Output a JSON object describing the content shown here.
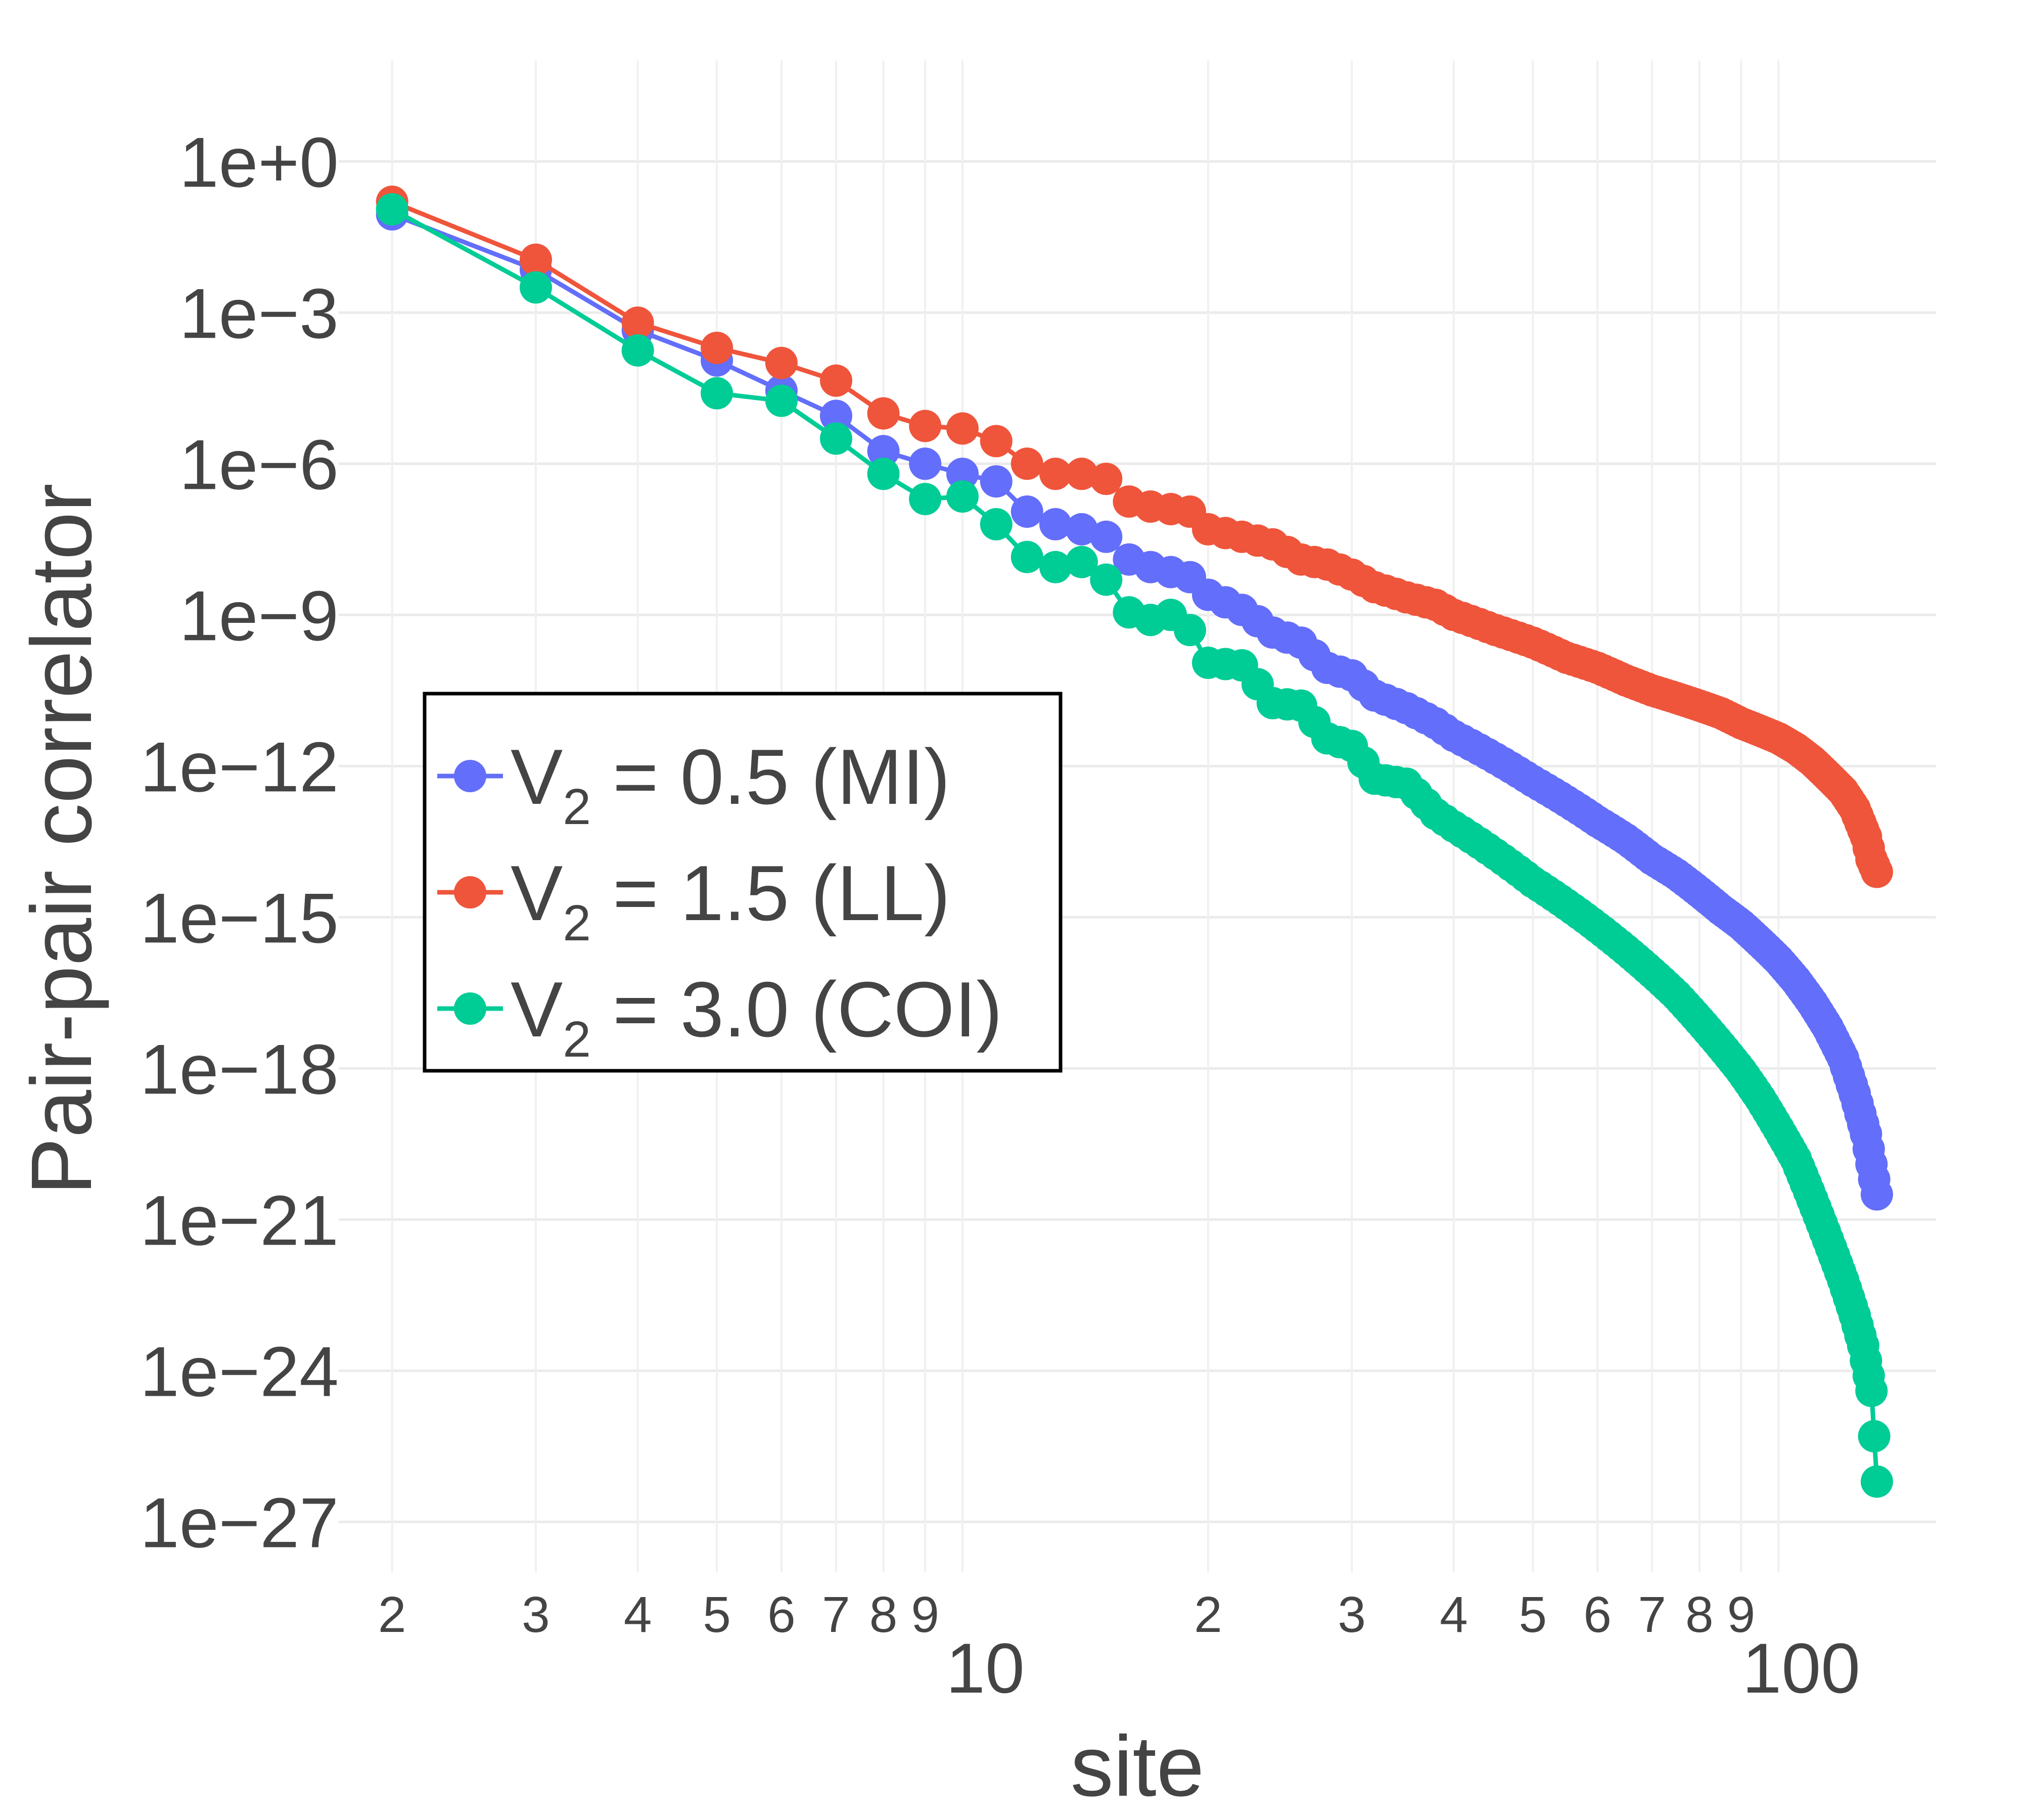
{
  "chart_data": {
    "type": "line",
    "title": "",
    "xlabel": "site",
    "ylabel": "Pair-pair correlator",
    "xscale": "log",
    "yscale": "log",
    "xlim": [
      1.72,
      156
    ],
    "ylim_log10": [
      -28.0,
      2.0
    ],
    "y_ticks": [
      {
        "exp": 0,
        "label": "1e+0"
      },
      {
        "exp": -3,
        "label": "1e−3"
      },
      {
        "exp": -6,
        "label": "1e−6"
      },
      {
        "exp": -9,
        "label": "1e−9"
      },
      {
        "exp": -12,
        "label": "1e−12"
      },
      {
        "exp": -15,
        "label": "1e−15"
      },
      {
        "exp": -18,
        "label": "1e−18"
      },
      {
        "exp": -21,
        "label": "1e−21"
      },
      {
        "exp": -24,
        "label": "1e−24"
      },
      {
        "exp": -27,
        "label": "1e−27"
      }
    ],
    "x_minor_ticks": [
      {
        "value": 2,
        "label": "2"
      },
      {
        "value": 3,
        "label": "3"
      },
      {
        "value": 4,
        "label": "4"
      },
      {
        "value": 5,
        "label": "5"
      },
      {
        "value": 6,
        "label": "6"
      },
      {
        "value": 7,
        "label": "7"
      },
      {
        "value": 8,
        "label": "8"
      },
      {
        "value": 9,
        "label": "9"
      },
      {
        "value": 20,
        "label": "2"
      },
      {
        "value": 30,
        "label": "3"
      },
      {
        "value": 40,
        "label": "4"
      },
      {
        "value": 50,
        "label": "5"
      },
      {
        "value": 60,
        "label": "6"
      },
      {
        "value": 70,
        "label": "7"
      },
      {
        "value": 80,
        "label": "8"
      },
      {
        "value": 90,
        "label": "9"
      }
    ],
    "x_major_ticks": [
      {
        "value": 10,
        "label": "10"
      },
      {
        "value": 100,
        "label": "100"
      }
    ],
    "legend": {
      "position": "center-left",
      "prefix": "V",
      "subscript": "2"
    },
    "series": [
      {
        "name": "V2 = 0.5 (MI)",
        "legend_rest": " = 0.5 (MI)",
        "color": "#636efa",
        "anchors": [
          [
            2,
            -1.05
          ],
          [
            3,
            -2.15
          ],
          [
            4,
            -3.35
          ],
          [
            5,
            -3.95
          ],
          [
            6,
            -4.55
          ],
          [
            7,
            -5.05
          ],
          [
            8,
            -5.75
          ],
          [
            9,
            -6.0
          ],
          [
            10,
            -6.2
          ],
          [
            11,
            -6.35
          ],
          [
            12,
            -6.95
          ],
          [
            13,
            -7.2
          ],
          [
            14,
            -7.3
          ],
          [
            15,
            -7.45
          ],
          [
            16,
            -7.9
          ],
          [
            17,
            -8.05
          ],
          [
            18,
            -8.15
          ],
          [
            19,
            -8.25
          ],
          [
            20,
            -8.6
          ],
          [
            22,
            -8.9
          ],
          [
            24,
            -9.35
          ],
          [
            26,
            -9.55
          ],
          [
            28,
            -10.05
          ],
          [
            30,
            -10.2
          ],
          [
            32,
            -10.6
          ],
          [
            35,
            -10.85
          ],
          [
            38,
            -11.15
          ],
          [
            40,
            -11.4
          ],
          [
            45,
            -11.85
          ],
          [
            50,
            -12.3
          ],
          [
            55,
            -12.7
          ],
          [
            60,
            -13.1
          ],
          [
            65,
            -13.45
          ],
          [
            70,
            -13.85
          ],
          [
            75,
            -14.15
          ],
          [
            80,
            -14.5
          ],
          [
            85,
            -14.85
          ],
          [
            90,
            -15.15
          ],
          [
            95,
            -15.5
          ],
          [
            100,
            -15.85
          ],
          [
            105,
            -16.25
          ],
          [
            110,
            -16.7
          ],
          [
            115,
            -17.2
          ],
          [
            120,
            -17.8
          ],
          [
            124,
            -18.5
          ],
          [
            128,
            -19.3
          ],
          [
            130,
            -19.9
          ],
          [
            132,
            -20.5
          ]
        ]
      },
      {
        "name": "V2 = 1.5 (LL)",
        "legend_rest": " = 1.5 (LL)",
        "color": "#ef553b",
        "anchors": [
          [
            2,
            -0.8
          ],
          [
            3,
            -1.95
          ],
          [
            4,
            -3.2
          ],
          [
            5,
            -3.7
          ],
          [
            6,
            -4.0
          ],
          [
            7,
            -4.35
          ],
          [
            8,
            -5.0
          ],
          [
            9,
            -5.25
          ],
          [
            10,
            -5.3
          ],
          [
            11,
            -5.55
          ],
          [
            12,
            -6.0
          ],
          [
            13,
            -6.2
          ],
          [
            14,
            -6.2
          ],
          [
            15,
            -6.3
          ],
          [
            16,
            -6.75
          ],
          [
            17,
            -6.85
          ],
          [
            18,
            -6.9
          ],
          [
            19,
            -6.95
          ],
          [
            20,
            -7.3
          ],
          [
            22,
            -7.45
          ],
          [
            24,
            -7.6
          ],
          [
            26,
            -7.9
          ],
          [
            28,
            -8.0
          ],
          [
            30,
            -8.2
          ],
          [
            32,
            -8.45
          ],
          [
            35,
            -8.65
          ],
          [
            38,
            -8.8
          ],
          [
            40,
            -9.0
          ],
          [
            45,
            -9.3
          ],
          [
            50,
            -9.55
          ],
          [
            55,
            -9.85
          ],
          [
            60,
            -10.05
          ],
          [
            65,
            -10.3
          ],
          [
            70,
            -10.5
          ],
          [
            75,
            -10.65
          ],
          [
            80,
            -10.8
          ],
          [
            85,
            -10.95
          ],
          [
            90,
            -11.15
          ],
          [
            95,
            -11.3
          ],
          [
            100,
            -11.45
          ],
          [
            105,
            -11.65
          ],
          [
            110,
            -11.9
          ],
          [
            115,
            -12.2
          ],
          [
            120,
            -12.5
          ],
          [
            124,
            -12.85
          ],
          [
            128,
            -13.4
          ],
          [
            130,
            -13.85
          ],
          [
            132,
            -14.1
          ]
        ]
      },
      {
        "name": "V2 = 3.0 (COI)",
        "legend_rest": " = 3.0 (COI)",
        "color": "#00cc96",
        "anchors": [
          [
            2,
            -0.95
          ],
          [
            3,
            -2.5
          ],
          [
            4,
            -3.75
          ],
          [
            5,
            -4.6
          ],
          [
            6,
            -4.75
          ],
          [
            7,
            -5.5
          ],
          [
            8,
            -6.2
          ],
          [
            9,
            -6.7
          ],
          [
            10,
            -6.65
          ],
          [
            11,
            -7.2
          ],
          [
            12,
            -7.85
          ],
          [
            13,
            -8.05
          ],
          [
            14,
            -7.95
          ],
          [
            15,
            -8.3
          ],
          [
            16,
            -8.95
          ],
          [
            17,
            -9.1
          ],
          [
            18,
            -9.0
          ],
          [
            19,
            -9.3
          ],
          [
            20,
            -9.95
          ],
          [
            22,
            -10.0
          ],
          [
            24,
            -10.75
          ],
          [
            26,
            -10.8
          ],
          [
            28,
            -11.45
          ],
          [
            30,
            -11.6
          ],
          [
            32,
            -12.25
          ],
          [
            35,
            -12.35
          ],
          [
            38,
            -12.95
          ],
          [
            40,
            -13.2
          ],
          [
            45,
            -13.75
          ],
          [
            50,
            -14.3
          ],
          [
            55,
            -14.75
          ],
          [
            60,
            -15.2
          ],
          [
            65,
            -15.65
          ],
          [
            70,
            -16.1
          ],
          [
            75,
            -16.55
          ],
          [
            80,
            -17.05
          ],
          [
            85,
            -17.55
          ],
          [
            90,
            -18.05
          ],
          [
            95,
            -18.6
          ],
          [
            100,
            -19.2
          ],
          [
            105,
            -19.8
          ],
          [
            110,
            -20.6
          ],
          [
            115,
            -21.4
          ],
          [
            120,
            -22.2
          ],
          [
            124,
            -22.9
          ],
          [
            127,
            -23.5
          ],
          [
            130,
            -24.4
          ],
          [
            132,
            -26.2
          ]
        ]
      }
    ]
  }
}
